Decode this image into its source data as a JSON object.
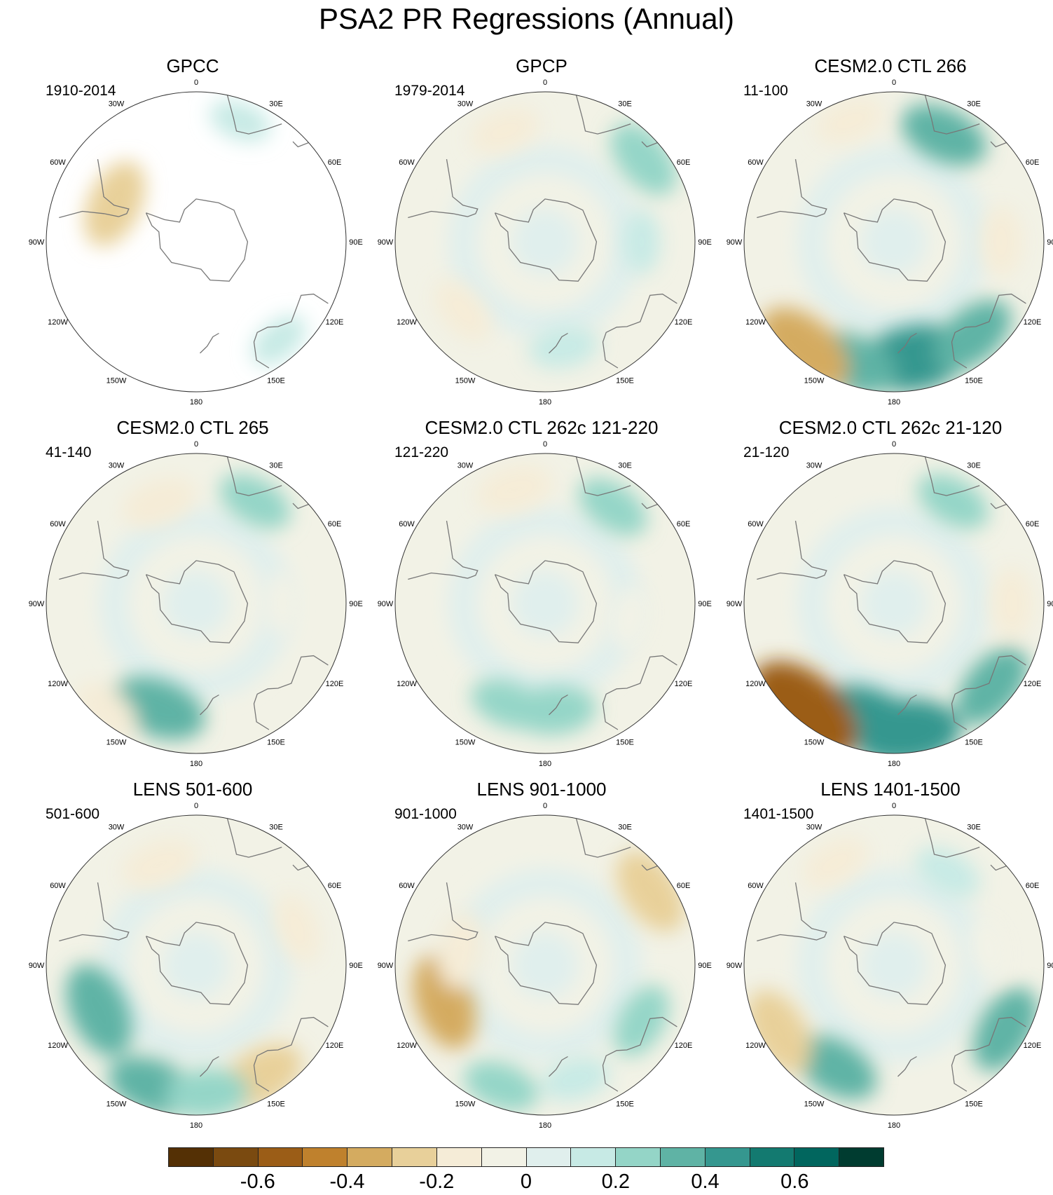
{
  "figure": {
    "title": "PSA2 PR Regressions (Annual)",
    "lon_labels": [
      "0",
      "30E",
      "60E",
      "90E",
      "120E",
      "150E",
      "180",
      "150W",
      "120W",
      "90W",
      "60W",
      "30W"
    ]
  },
  "panels": [
    {
      "title": "GPCC",
      "period": "1910-2014",
      "data_coverage": "land-only",
      "anomalies": [
        {
          "lon": -65,
          "lat": -48,
          "value": -0.3
        },
        {
          "lon": 20,
          "lat": -30,
          "value": 0.1
        },
        {
          "lon": 140,
          "lat": -30,
          "value": 0.1
        }
      ]
    },
    {
      "title": "GPCP",
      "period": "1979-2014",
      "data_coverage": "global",
      "anomalies": [
        {
          "lon": -20,
          "lat": -35,
          "value": -0.15
        },
        {
          "lon": 50,
          "lat": -30,
          "value": 0.25
        },
        {
          "lon": 170,
          "lat": -40,
          "value": 0.15
        },
        {
          "lon": -130,
          "lat": -40,
          "value": -0.15
        },
        {
          "lon": 90,
          "lat": -45,
          "value": 0.1
        }
      ]
    },
    {
      "title": "CESM2.0 CTL 266",
      "period": "11-100",
      "data_coverage": "global",
      "anomalies": [
        {
          "lon": 170,
          "lat": -35,
          "value": 0.45
        },
        {
          "lon": -160,
          "lat": -30,
          "value": 0.35
        },
        {
          "lon": 140,
          "lat": -33,
          "value": 0.3
        },
        {
          "lon": -140,
          "lat": -25,
          "value": -0.4
        },
        {
          "lon": 25,
          "lat": -35,
          "value": 0.3
        },
        {
          "lon": -20,
          "lat": -30,
          "value": -0.15
        },
        {
          "lon": 90,
          "lat": -40,
          "value": -0.15
        }
      ]
    },
    {
      "title": "CESM2.0 CTL 265",
      "period": "41-140",
      "data_coverage": "global",
      "anomalies": [
        {
          "lon": -160,
          "lat": -38,
          "value": 0.35
        },
        {
          "lon": -20,
          "lat": -40,
          "value": -0.2
        },
        {
          "lon": 30,
          "lat": -35,
          "value": 0.2
        },
        {
          "lon": 90,
          "lat": -50,
          "value": -0.1
        },
        {
          "lon": -140,
          "lat": -25,
          "value": -0.15
        }
      ]
    },
    {
      "title": "CESM2.0 CTL 262c 121-220",
      "period": "121-220",
      "data_coverage": "global",
      "anomalies": [
        {
          "lon": 175,
          "lat": -40,
          "value": 0.25
        },
        {
          "lon": -160,
          "lat": -40,
          "value": 0.2
        },
        {
          "lon": -15,
          "lat": -35,
          "value": -0.2
        },
        {
          "lon": 35,
          "lat": -35,
          "value": 0.2
        },
        {
          "lon": 100,
          "lat": -50,
          "value": -0.1
        }
      ]
    },
    {
      "title": "CESM2.0 CTL 262c 21-120",
      "period": "21-120",
      "data_coverage": "global",
      "anomalies": [
        {
          "lon": -165,
          "lat": -35,
          "value": 0.4
        },
        {
          "lon": 175,
          "lat": -30,
          "value": 0.45
        },
        {
          "lon": -140,
          "lat": -25,
          "value": -0.55
        },
        {
          "lon": 130,
          "lat": -30,
          "value": 0.3
        },
        {
          "lon": 90,
          "lat": -35,
          "value": -0.15
        },
        {
          "lon": 30,
          "lat": -35,
          "value": 0.2
        }
      ]
    },
    {
      "title": "LENS 501-600",
      "period": "501-600",
      "data_coverage": "global",
      "anomalies": [
        {
          "lon": -115,
          "lat": -40,
          "value": 0.35
        },
        {
          "lon": -160,
          "lat": -30,
          "value": 0.3
        },
        {
          "lon": 150,
          "lat": -30,
          "value": -0.3
        },
        {
          "lon": -20,
          "lat": -40,
          "value": -0.2
        },
        {
          "lon": 70,
          "lat": -40,
          "value": -0.15
        },
        {
          "lon": 175,
          "lat": -30,
          "value": 0.25
        }
      ]
    },
    {
      "title": "LENS 901-1000",
      "period": "901-1000",
      "data_coverage": "global",
      "anomalies": [
        {
          "lon": -110,
          "lat": -40,
          "value": -0.35
        },
        {
          "lon": 55,
          "lat": -30,
          "value": -0.3
        },
        {
          "lon": -80,
          "lat": -50,
          "value": -0.2
        },
        {
          "lon": 165,
          "lat": -35,
          "value": 0.15
        },
        {
          "lon": 120,
          "lat": -38,
          "value": 0.2
        },
        {
          "lon": -160,
          "lat": -30,
          "value": 0.2
        }
      ]
    },
    {
      "title": "LENS 1401-1500",
      "period": "1401-1500",
      "data_coverage": "global",
      "anomalies": [
        {
          "lon": -150,
          "lat": -35,
          "value": 0.3
        },
        {
          "lon": -120,
          "lat": -28,
          "value": -0.3
        },
        {
          "lon": 120,
          "lat": -30,
          "value": 0.3
        },
        {
          "lon": 30,
          "lat": -40,
          "value": 0.15
        },
        {
          "lon": -30,
          "lat": -35,
          "value": -0.15
        },
        {
          "lon": 80,
          "lat": -45,
          "value": -0.1
        }
      ]
    }
  ],
  "colorbar": {
    "colors": [
      "#543005",
      "#7a4a10",
      "#9b5d17",
      "#bf812d",
      "#d4ab60",
      "#e8d09a",
      "#f5ecd7",
      "#f2f2e6",
      "#e0efed",
      "#c7eae5",
      "#94d5c7",
      "#5fb3a5",
      "#35978f",
      "#137a70",
      "#01665e",
      "#003c30"
    ],
    "labels": [
      "-0.6",
      "-0.4",
      "-0.2",
      "0",
      "0.2",
      "0.4",
      "0.6"
    ],
    "label_values": [
      -0.6,
      -0.4,
      -0.2,
      0,
      0.2,
      0.4,
      0.6
    ],
    "min": -0.8,
    "max": 0.8
  }
}
